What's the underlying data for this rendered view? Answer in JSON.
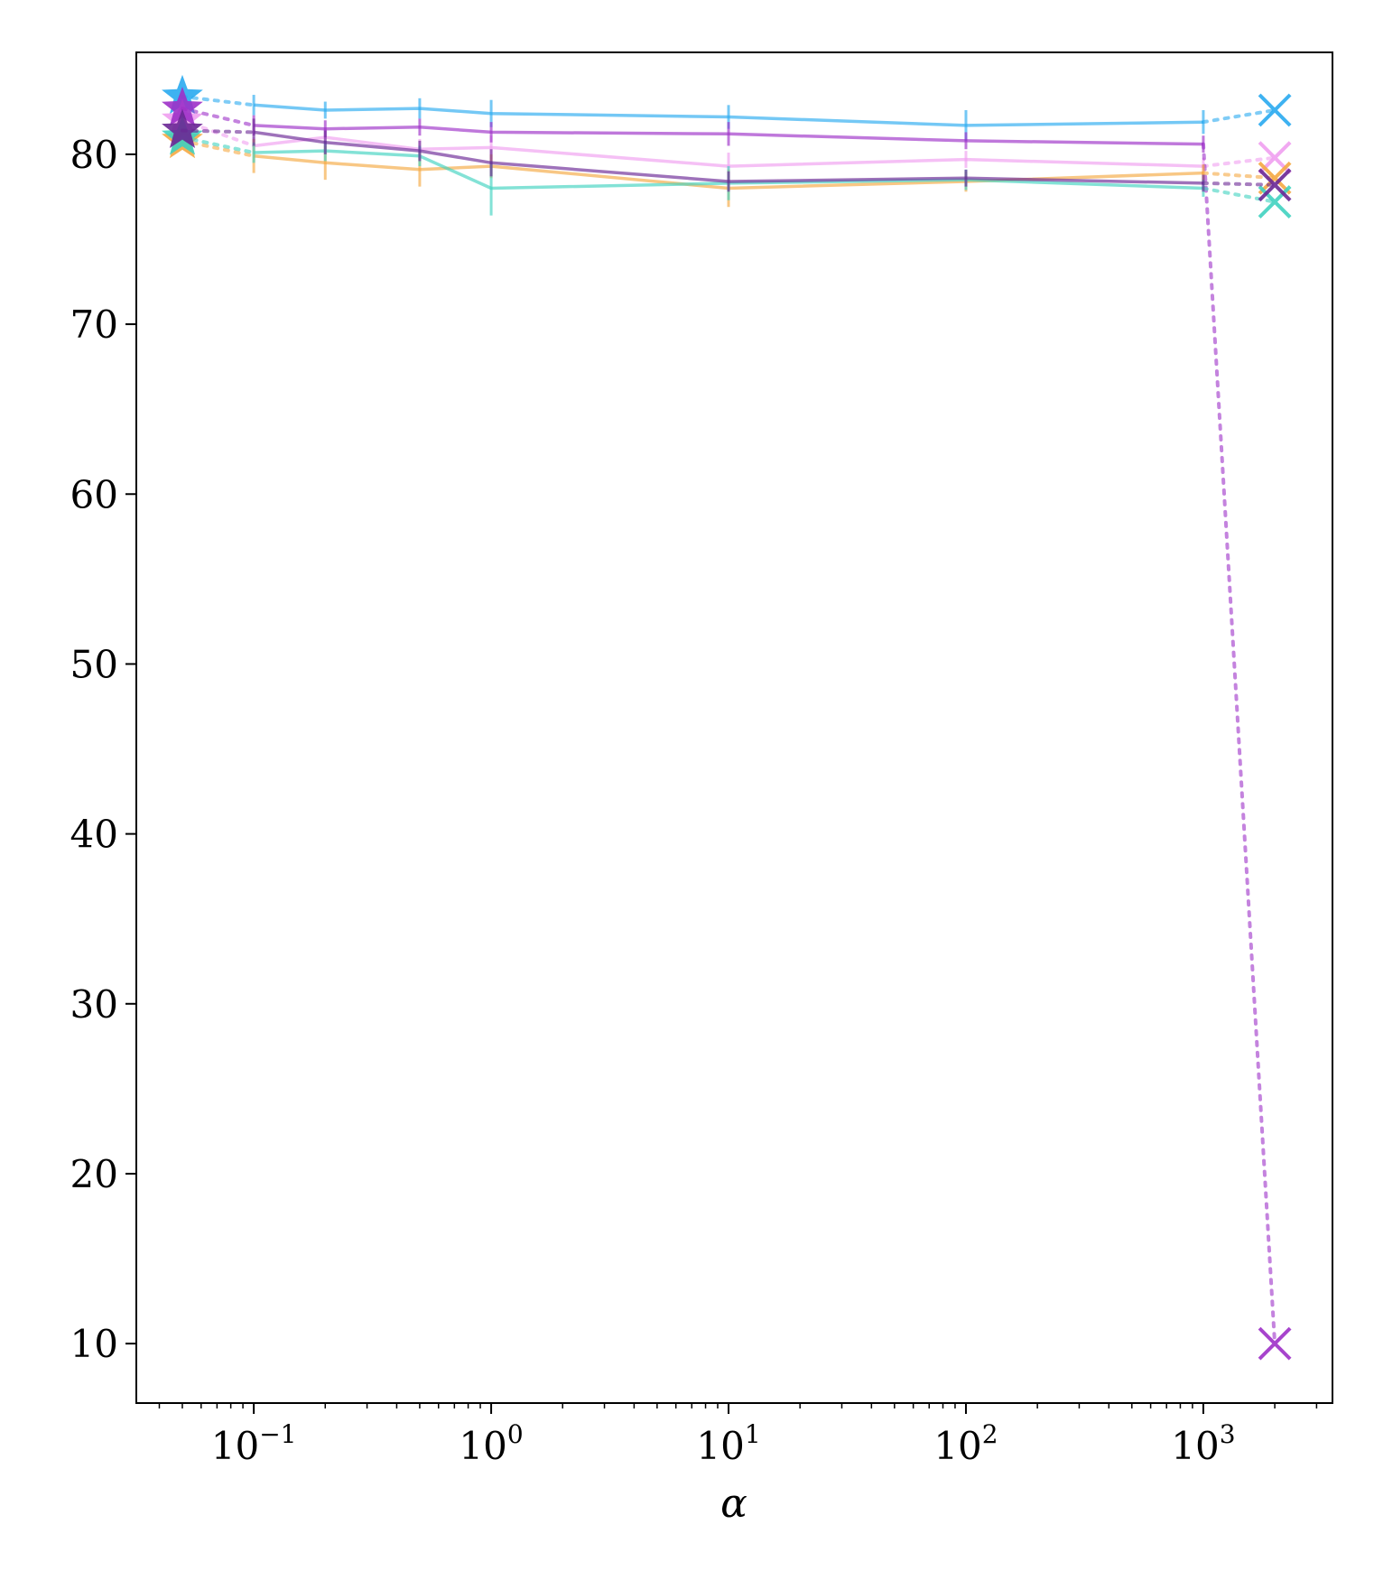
{
  "chart_data": {
    "type": "line",
    "xlabel": "α",
    "ylabel": "",
    "title": "",
    "x_scale": "log",
    "xlim": [
      0.032,
      3500
    ],
    "ylim": [
      6.5,
      86
    ],
    "yticks": [
      10,
      20,
      30,
      40,
      50,
      60,
      70,
      80
    ],
    "xticks": [
      {
        "value": 0.1,
        "base": "10",
        "exp": "−1"
      },
      {
        "value": 1,
        "base": "10",
        "exp": "0"
      },
      {
        "value": 10,
        "base": "10",
        "exp": "1"
      },
      {
        "value": 100,
        "base": "10",
        "exp": "2"
      },
      {
        "value": 1000,
        "base": "10",
        "exp": "3"
      }
    ],
    "grid": false,
    "star_x": 0.05,
    "cross_x": 2000,
    "x": [
      0.1,
      0.2,
      0.5,
      1,
      10,
      100,
      1000
    ],
    "series": [
      {
        "color": "#29aaf0",
        "values": [
          82.9,
          82.6,
          82.7,
          82.4,
          82.2,
          81.7,
          81.9
        ],
        "errors": [
          0.6,
          0.5,
          0.6,
          0.8,
          0.7,
          0.9,
          0.7
        ],
        "star": 83.4,
        "cross": 82.6
      },
      {
        "color": "#f09ef0",
        "values": [
          80.5,
          81.0,
          80.3,
          80.4,
          79.3,
          79.7,
          79.3
        ],
        "errors": [
          0.5,
          0.5,
          0.6,
          0.7,
          0.8,
          0.5,
          0.5
        ],
        "star": 82.0,
        "cross": 79.8
      },
      {
        "color": "#9d30c8",
        "values": [
          81.7,
          81.5,
          81.6,
          81.3,
          81.2,
          80.8,
          80.6
        ],
        "errors": [
          0.6,
          0.5,
          0.5,
          0.6,
          0.7,
          0.5,
          0.5
        ],
        "star": 82.7,
        "cross": 10.0
      },
      {
        "color": "#f5a942",
        "values": [
          79.9,
          79.5,
          79.1,
          79.3,
          78.0,
          78.4,
          78.9
        ],
        "errors": [
          1.0,
          1.0,
          1.0,
          0.7,
          1.1,
          0.6,
          0.5
        ],
        "star": 80.8,
        "cross": 78.6
      },
      {
        "color": "#40d2c0",
        "values": [
          80.1,
          80.2,
          79.9,
          78.0,
          78.3,
          78.5,
          78.0
        ],
        "errors": [
          0.6,
          0.6,
          0.6,
          1.6,
          1.0,
          0.6,
          0.5
        ],
        "star": 81.0,
        "cross": 77.2
      },
      {
        "color": "#6a2795",
        "values": [
          81.3,
          80.7,
          80.2,
          79.5,
          78.4,
          78.6,
          78.3
        ],
        "errors": [
          0.8,
          0.7,
          0.6,
          0.8,
          0.6,
          0.5,
          0.5
        ],
        "star": 81.4,
        "cross": 78.2
      }
    ]
  }
}
